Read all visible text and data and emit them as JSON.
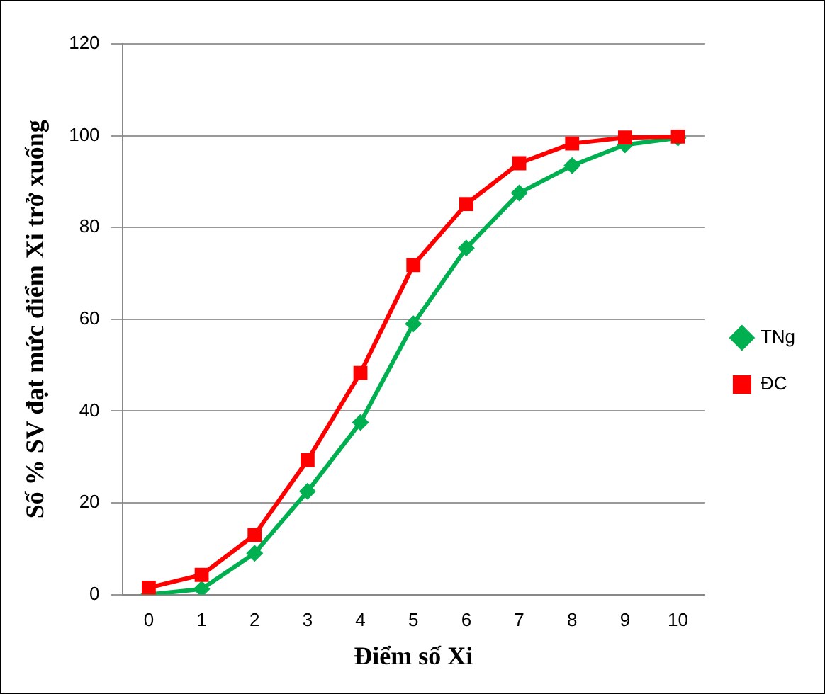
{
  "chart_data": {
    "type": "line",
    "xlabel": "Điểm số Xi",
    "ylabel": "Số % SV đạt mức điểm Xi trở xuống",
    "categories": [
      "0",
      "1",
      "2",
      "3",
      "4",
      "5",
      "6",
      "7",
      "8",
      "9",
      "10"
    ],
    "series": [
      {
        "name": "TNg",
        "color": "#00b050",
        "marker": "diamond",
        "values": [
          0,
          1.2,
          9,
          22.5,
          37.5,
          59,
          75.5,
          87.5,
          93.5,
          98,
          99.5
        ]
      },
      {
        "name": "ĐC",
        "color": "#ff0000",
        "marker": "square",
        "values": [
          1.5,
          4.3,
          13,
          29.3,
          48.3,
          71.8,
          85.1,
          94,
          98.3,
          99.6,
          99.8
        ]
      }
    ],
    "ylim": [
      0,
      120
    ],
    "yticks": [
      0,
      20,
      40,
      60,
      80,
      100,
      120
    ],
    "grid": "y",
    "legend": "right",
    "line_style": "solid"
  }
}
